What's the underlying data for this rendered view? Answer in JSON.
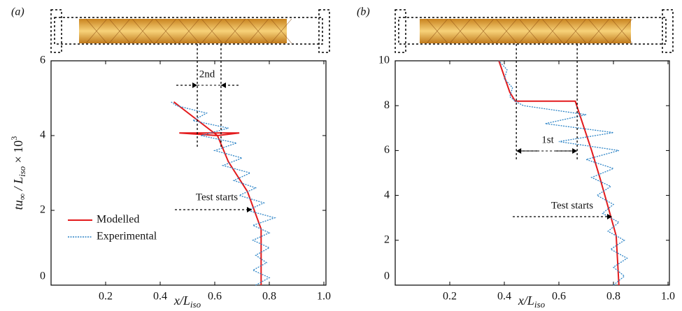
{
  "chart_data": [
    {
      "type": "line",
      "panel_label": "(a)",
      "xlabel": [
        "x/L",
        "iso"
      ],
      "ylabel": [
        "tu",
        "∞",
        " / L",
        "iso",
        " × 10",
        "3"
      ],
      "xlim": [
        0,
        1
      ],
      "ylim": [
        0,
        6
      ],
      "xticks": [
        0.2,
        0.4,
        0.6,
        0.8,
        {
          "value": 1,
          "label": "1.0"
        }
      ],
      "yticks": [
        0,
        2,
        4,
        6
      ],
      "guide_x": [
        0.536,
        0.623
      ],
      "annotations": [
        "2nd",
        "Test starts"
      ],
      "legend": "lower left",
      "series": [
        {
          "name": "Modelled",
          "color": "#e31a1c",
          "x": [
            0.77,
            0.77,
            0.72,
            0.65,
            0.61,
            0.47,
            0.69,
            0.61,
            0.45
          ],
          "y": [
            0,
            1.5,
            2.5,
            3.3,
            4.0,
            4.07,
            4.07,
            4.0,
            4.9
          ]
        },
        {
          "name": "Experimental",
          "color": "#2b83c6",
          "x": [
            0.75,
            0.8,
            0.74,
            0.79,
            0.75,
            0.8,
            0.74,
            0.8,
            0.74,
            0.82,
            0.72,
            0.78,
            0.69,
            0.75,
            0.67,
            0.73,
            0.63,
            0.7,
            0.6,
            0.68,
            0.55,
            0.65,
            0.52,
            0.57,
            0.46,
            0.44
          ],
          "y": [
            0,
            0.2,
            0.4,
            0.6,
            0.8,
            1.0,
            1.2,
            1.4,
            1.6,
            1.8,
            2.0,
            2.2,
            2.4,
            2.6,
            2.8,
            3.0,
            3.2,
            3.4,
            3.6,
            3.8,
            4.0,
            4.2,
            4.4,
            4.6,
            4.8,
            4.9
          ]
        }
      ]
    },
    {
      "type": "line",
      "panel_label": "(b)",
      "xlabel": [
        "x/L",
        "iso"
      ],
      "xlim": [
        0,
        1
      ],
      "ylim": [
        0,
        10
      ],
      "xticks": [
        0.2,
        0.4,
        0.6,
        0.8,
        {
          "value": 1,
          "label": "1.0"
        }
      ],
      "yticks": [
        0,
        2,
        4,
        6,
        8,
        10
      ],
      "guide_x": [
        0.444,
        0.667
      ],
      "annotations": [
        "1st",
        "Test starts"
      ],
      "series": [
        {
          "color": "#e31a1c",
          "x": [
            0.82,
            0.81,
            0.78,
            0.75,
            0.72,
            0.66,
            0.44,
            0.42,
            0.38
          ],
          "y": [
            0,
            2.2,
            3.5,
            4.8,
            6.0,
            8.2,
            8.2,
            8.6,
            10
          ]
        },
        {
          "color": "#2b83c6",
          "x": [
            0.8,
            0.84,
            0.8,
            0.85,
            0.79,
            0.84,
            0.78,
            0.82,
            0.76,
            0.8,
            0.74,
            0.79,
            0.72,
            0.8,
            0.7,
            0.82,
            0.6,
            0.8,
            0.55,
            0.7,
            0.47,
            0.44,
            0.42,
            0.43,
            0.4,
            0.41,
            0.38
          ],
          "y": [
            0,
            0.4,
            0.8,
            1.2,
            1.6,
            2.0,
            2.4,
            2.8,
            3.2,
            3.6,
            4.0,
            4.4,
            4.8,
            5.2,
            5.6,
            6.0,
            6.4,
            6.8,
            7.2,
            7.6,
            8.0,
            8.2,
            8.4,
            8.8,
            9.2,
            9.6,
            10
          ]
        }
      ]
    }
  ]
}
